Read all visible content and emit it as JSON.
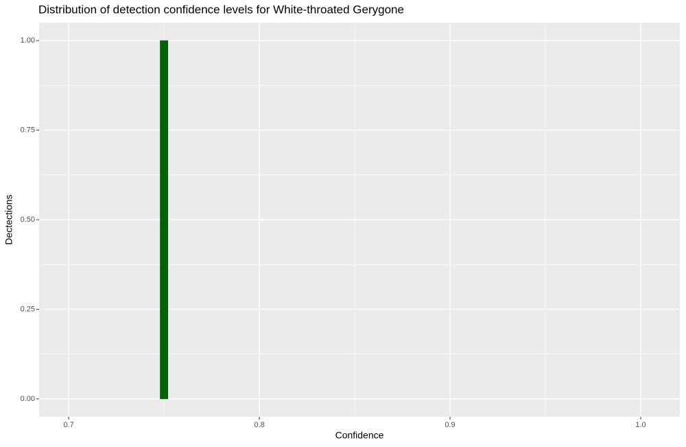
{
  "chart_data": {
    "type": "histogram",
    "title": "Distribution of detection confidence levels for White-throated Gerygone",
    "x_label": "Confidence",
    "y_label": "Dectections",
    "bins": [
      0.748,
      0.752
    ],
    "values": [
      1
    ],
    "color": "#006400",
    "xlim": [
      0.6845,
      1.0205
    ],
    "ylim": [
      -0.05,
      1.05
    ],
    "xticks": [
      0.7,
      0.8,
      0.9,
      {
        "value": 1,
        "label": "1.0"
      }
    ],
    "yticks": [
      {
        "value": 0,
        "label": "0.00"
      },
      {
        "value": 0.25,
        "label": "0.25"
      },
      {
        "value": 0.5,
        "label": "0.50"
      },
      {
        "value": 0.75,
        "label": "0.75"
      },
      {
        "value": 1,
        "label": "1.00"
      }
    ],
    "grid": true
  }
}
